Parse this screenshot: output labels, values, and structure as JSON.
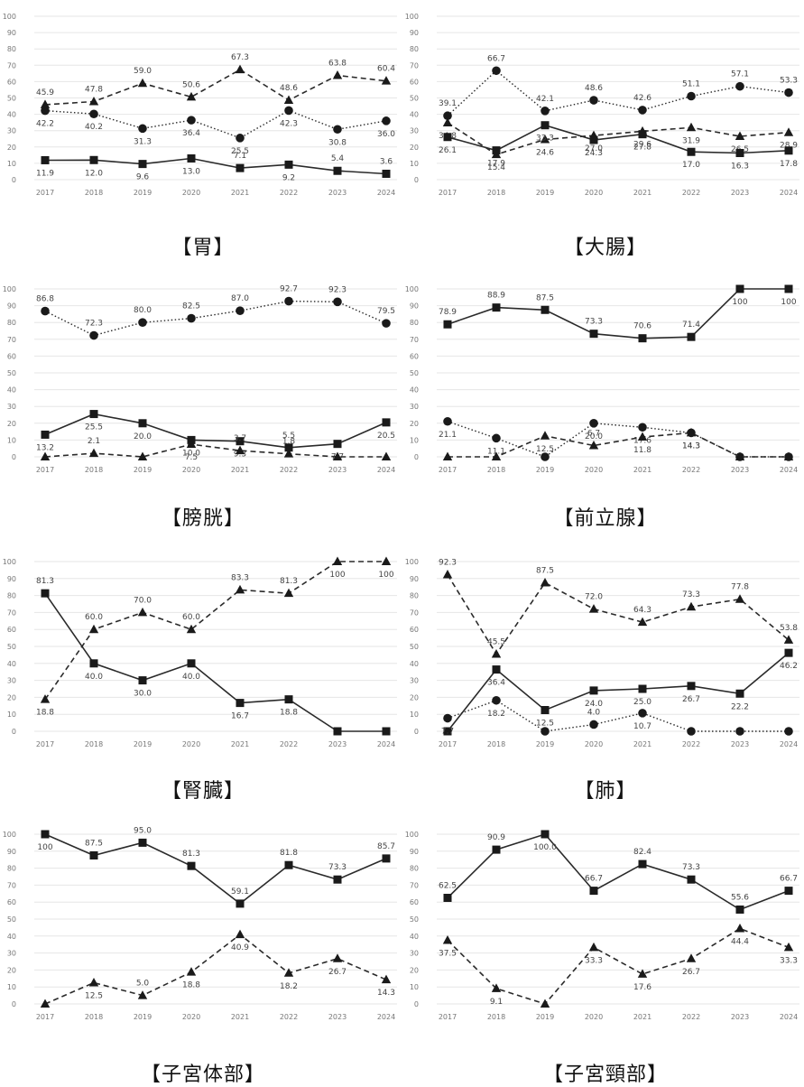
{
  "chart_data": [
    {
      "type": "line",
      "title": "【胃】",
      "x": [
        "2017",
        "2018",
        "2019",
        "2020",
        "2021",
        "2022",
        "2023",
        "2024"
      ],
      "ylim": [
        0,
        100
      ],
      "yticks": [
        0,
        10,
        20,
        30,
        40,
        50,
        60,
        70,
        80,
        90,
        100
      ],
      "grid": true,
      "series": [
        {
          "marker": "triangle",
          "line": "dashed",
          "values": [
            45.9,
            47.8,
            59.0,
            50.6,
            67.3,
            48.6,
            63.8,
            60.4
          ]
        },
        {
          "marker": "circle",
          "line": "dotted",
          "values": [
            42.2,
            40.2,
            31.3,
            36.4,
            25.5,
            42.3,
            30.8,
            36.0
          ]
        },
        {
          "marker": "square",
          "line": "solid",
          "values": [
            11.9,
            12.0,
            9.6,
            13.0,
            7.1,
            9.2,
            5.4,
            3.6
          ]
        }
      ]
    },
    {
      "type": "line",
      "title": "【大腸】",
      "x": [
        "2017",
        "2018",
        "2019",
        "2020",
        "2021",
        "2022",
        "2023",
        "2024"
      ],
      "ylim": [
        0,
        100
      ],
      "yticks": [
        0,
        10,
        20,
        30,
        40,
        50,
        60,
        70,
        80,
        90,
        100
      ],
      "grid": true,
      "series": [
        {
          "marker": "circle",
          "line": "dotted",
          "values": [
            39.1,
            66.7,
            42.1,
            48.6,
            42.6,
            51.1,
            57.1,
            53.3
          ]
        },
        {
          "marker": "triangle",
          "line": "dashed",
          "values": [
            34.8,
            15.4,
            24.6,
            27.0,
            29.6,
            31.9,
            26.5,
            28.9
          ]
        },
        {
          "marker": "square",
          "line": "solid",
          "values": [
            26.1,
            17.9,
            33.3,
            24.3,
            27.8,
            17.0,
            16.3,
            17.8
          ]
        }
      ]
    },
    {
      "type": "line",
      "title": "【膀胱】",
      "x": [
        "2017",
        "2018",
        "2019",
        "2020",
        "2021",
        "2022",
        "2023",
        "2024"
      ],
      "ylim": [
        0,
        100
      ],
      "yticks": [
        0,
        10,
        20,
        30,
        40,
        50,
        60,
        70,
        80,
        90,
        100
      ],
      "grid": true,
      "series": [
        {
          "marker": "circle",
          "line": "dotted",
          "values": [
            86.8,
            72.3,
            80.0,
            82.5,
            87.0,
            92.7,
            92.3,
            79.5
          ]
        },
        {
          "marker": "square",
          "line": "solid",
          "values": [
            13.2,
            25.5,
            20.0,
            10.0,
            9.3,
            5.5,
            7.7,
            20.5
          ]
        },
        {
          "marker": "triangle",
          "line": "dashed",
          "values": [
            0,
            2.1,
            0,
            7.5,
            3.7,
            1.8,
            0,
            0
          ]
        }
      ]
    },
    {
      "type": "line",
      "title": "【前立腺】",
      "x": [
        "2017",
        "2018",
        "2019",
        "2020",
        "2021",
        "2022",
        "2023",
        "2024"
      ],
      "ylim": [
        0,
        100
      ],
      "yticks": [
        0,
        10,
        20,
        30,
        40,
        50,
        60,
        70,
        80,
        90,
        100
      ],
      "grid": true,
      "series": [
        {
          "marker": "square",
          "line": "solid",
          "values": [
            78.9,
            88.9,
            87.5,
            73.3,
            70.6,
            71.4,
            100,
            100
          ]
        },
        {
          "marker": "circle",
          "line": "dotted",
          "values": [
            21.1,
            11.1,
            0,
            20.0,
            17.6,
            14.3,
            0,
            0
          ]
        },
        {
          "marker": "triangle",
          "line": "dashed",
          "values": [
            0,
            0,
            12.5,
            6.7,
            11.8,
            14.3,
            0,
            0
          ]
        }
      ]
    },
    {
      "type": "line",
      "title": "【腎臓】",
      "x": [
        "2017",
        "2018",
        "2019",
        "2020",
        "2021",
        "2022",
        "2023",
        "2024"
      ],
      "ylim": [
        0,
        100
      ],
      "yticks": [
        0,
        10,
        20,
        30,
        40,
        50,
        60,
        70,
        80,
        90,
        100
      ],
      "grid": true,
      "series": [
        {
          "marker": "square",
          "line": "solid",
          "values": [
            81.3,
            40.0,
            30.0,
            40.0,
            16.7,
            18.8,
            0,
            0
          ]
        },
        {
          "marker": "triangle",
          "line": "dashed",
          "values": [
            18.8,
            60.0,
            70.0,
            60.0,
            83.3,
            81.3,
            100,
            100
          ]
        }
      ]
    },
    {
      "type": "line",
      "title": "【肺】",
      "x": [
        "2017",
        "2018",
        "2019",
        "2020",
        "2021",
        "2022",
        "2023",
        "2024"
      ],
      "ylim": [
        0,
        100
      ],
      "yticks": [
        0,
        10,
        20,
        30,
        40,
        50,
        60,
        70,
        80,
        90,
        100
      ],
      "grid": true,
      "series": [
        {
          "marker": "triangle",
          "line": "dashed",
          "values": [
            92.3,
            45.5,
            87.5,
            72.0,
            64.3,
            73.3,
            77.8,
            53.8
          ]
        },
        {
          "marker": "square",
          "line": "solid",
          "values": [
            0,
            36.4,
            12.5,
            24.0,
            25.0,
            26.7,
            22.2,
            46.2
          ]
        },
        {
          "marker": "circle",
          "line": "dotted",
          "values": [
            7.7,
            18.2,
            0,
            4.0,
            10.7,
            0,
            0,
            0
          ]
        }
      ]
    },
    {
      "type": "line",
      "title": "【子宮体部】",
      "x": [
        "2017",
        "2018",
        "2019",
        "2020",
        "2021",
        "2022",
        "2023",
        "2024"
      ],
      "ylim": [
        0,
        100
      ],
      "yticks": [
        0,
        10,
        20,
        30,
        40,
        50,
        60,
        70,
        80,
        90,
        100
      ],
      "grid": true,
      "series": [
        {
          "marker": "square",
          "line": "solid",
          "values": [
            100,
            87.5,
            95.0,
            81.3,
            59.1,
            81.8,
            73.3,
            85.7
          ]
        },
        {
          "marker": "triangle",
          "line": "dashed",
          "values": [
            0,
            12.5,
            5.0,
            18.8,
            40.9,
            18.2,
            26.7,
            14.3
          ]
        }
      ]
    },
    {
      "type": "line",
      "title": "【子宮頸部】",
      "x": [
        "2017",
        "2018",
        "2019",
        "2020",
        "2021",
        "2022",
        "2023",
        "2024"
      ],
      "ylim": [
        0,
        100
      ],
      "yticks": [
        0,
        10,
        20,
        30,
        40,
        50,
        60,
        70,
        80,
        90,
        100
      ],
      "grid": true,
      "series": [
        {
          "marker": "square",
          "line": "solid",
          "values": [
            62.5,
            90.9,
            100.0,
            66.7,
            82.4,
            73.3,
            55.6,
            66.7
          ]
        },
        {
          "marker": "triangle",
          "line": "dashed",
          "values": [
            37.5,
            9.1,
            0,
            33.3,
            17.6,
            26.7,
            44.4,
            33.3
          ]
        }
      ]
    }
  ],
  "labels": [
    [
      [
        "45.9",
        "47.8",
        "59.0",
        "50.6",
        "67.3",
        "48.6",
        "63.8",
        "60.4"
      ],
      [
        "42.2",
        "40.2",
        "31.3",
        "36.4",
        "25.5",
        "42.3",
        "30.8",
        "36.0"
      ],
      [
        "11.9",
        "12.0",
        "9.6",
        "13.0",
        "7.1",
        "9.2",
        "5.4",
        "3.6"
      ]
    ],
    [
      [
        "39.1",
        "66.7",
        "42.1",
        "48.6",
        "42.6",
        "51.1",
        "57.1",
        "53.3"
      ],
      [
        "34.8",
        "15.4",
        "24.6",
        "27.0",
        "29.6",
        "31.9",
        "26.5",
        "28.9"
      ],
      [
        "26.1",
        "17.9",
        "33.3",
        "24.3",
        "27.8",
        "17.0",
        "16.3",
        "17.8"
      ]
    ],
    [
      [
        "86.8",
        "72.3",
        "80.0",
        "82.5",
        "87.0",
        "92.7",
        "92.3",
        "79.5"
      ],
      [
        "13.2",
        "25.5",
        "20.0",
        "10.0",
        "9.3",
        "5.5",
        "7.7",
        "20.5"
      ],
      [
        "",
        "2.1",
        "",
        "7.5",
        "3.7",
        "1.8",
        "",
        ""
      ]
    ],
    [
      [
        "78.9",
        "88.9",
        "87.5",
        "73.3",
        "70.6",
        "71.4",
        "100",
        "100"
      ],
      [
        "21.1",
        "11.1",
        "",
        "20.0",
        "17.6",
        "14.3",
        "",
        ""
      ],
      [
        "",
        "",
        "12.5",
        "6.7",
        "11.8",
        "14.3",
        "",
        ""
      ]
    ],
    [
      [
        "81.3",
        "40.0",
        "30.0",
        "40.0",
        "16.7",
        "18.8",
        "",
        ""
      ],
      [
        "18.8",
        "60.0",
        "70.0",
        "60.0",
        "83.3",
        "81.3",
        "100",
        "100"
      ]
    ],
    [
      [
        "92.3",
        "45.5",
        "87.5",
        "72.0",
        "64.3",
        "73.3",
        "77.8",
        "53.8"
      ],
      [
        "",
        "36.4",
        "12.5",
        "24.0",
        "25.0",
        "26.7",
        "22.2",
        "46.2"
      ],
      [
        "7.7",
        "18.2",
        "",
        "4.0",
        "10.7",
        "",
        "",
        ""
      ]
    ],
    [
      [
        "100",
        "87.5",
        "95.0",
        "81.3",
        "59.1",
        "81.8",
        "73.3",
        "85.7"
      ],
      [
        "",
        "12.5",
        "5.0",
        "18.8",
        "40.9",
        "18.2",
        "26.7",
        "14.3"
      ]
    ],
    [
      [
        "62.5",
        "90.9",
        "100.0",
        "66.7",
        "82.4",
        "73.3",
        "55.6",
        "66.7"
      ],
      [
        "37.5",
        "9.1",
        "",
        "33.3",
        "17.6",
        "26.7",
        "44.4",
        "33.3"
      ]
    ]
  ]
}
